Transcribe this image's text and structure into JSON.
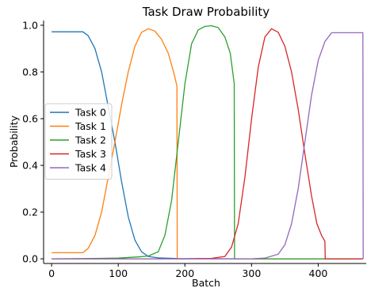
{
  "chart_data": {
    "type": "line",
    "title": "Task Draw Probability",
    "xlabel": "Batch",
    "ylabel": "Probability",
    "xlim": [
      -12,
      472
    ],
    "ylim": [
      -0.02,
      1.02
    ],
    "xticks": [
      0,
      100,
      200,
      300,
      400
    ],
    "yticks": [
      0.0,
      0.2,
      0.4,
      0.6,
      0.8,
      1.0
    ],
    "grid": false,
    "legend_position": "center-left",
    "series": [
      {
        "name": "Task 0",
        "color": "#1f77b4",
        "points": [
          [
            0,
            0.972
          ],
          [
            25,
            0.972
          ],
          [
            47,
            0.972
          ],
          [
            55,
            0.955
          ],
          [
            65,
            0.9
          ],
          [
            75,
            0.8
          ],
          [
            85,
            0.65
          ],
          [
            95,
            0.5
          ],
          [
            105,
            0.33
          ],
          [
            115,
            0.18
          ],
          [
            125,
            0.08
          ],
          [
            135,
            0.03
          ],
          [
            145,
            0.01
          ],
          [
            160,
            0.004
          ],
          [
            190,
            0.001
          ],
          [
            300,
            0.0
          ],
          [
            467,
            0.0
          ]
        ]
      },
      {
        "name": "Task 1",
        "color": "#ff7f0e",
        "points": [
          [
            0,
            0.026
          ],
          [
            25,
            0.026
          ],
          [
            47,
            0.026
          ],
          [
            55,
            0.045
          ],
          [
            65,
            0.1
          ],
          [
            75,
            0.2
          ],
          [
            85,
            0.35
          ],
          [
            95,
            0.5
          ],
          [
            105,
            0.66
          ],
          [
            115,
            0.8
          ],
          [
            125,
            0.91
          ],
          [
            135,
            0.97
          ],
          [
            145,
            0.985
          ],
          [
            155,
            0.975
          ],
          [
            165,
            0.94
          ],
          [
            175,
            0.88
          ],
          [
            183,
            0.8
          ],
          [
            188,
            0.74
          ],
          [
            188.5,
            0.0
          ],
          [
            300,
            0.0
          ],
          [
            467,
            0.0
          ]
        ]
      },
      {
        "name": "Task 2",
        "color": "#2ca02c",
        "points": [
          [
            0,
            0.0
          ],
          [
            50,
            0.001
          ],
          [
            100,
            0.003
          ],
          [
            130,
            0.008
          ],
          [
            145,
            0.012
          ],
          [
            160,
            0.03
          ],
          [
            170,
            0.1
          ],
          [
            180,
            0.25
          ],
          [
            190,
            0.5
          ],
          [
            200,
            0.75
          ],
          [
            210,
            0.92
          ],
          [
            220,
            0.98
          ],
          [
            230,
            0.995
          ],
          [
            240,
            0.998
          ],
          [
            250,
            0.99
          ],
          [
            260,
            0.95
          ],
          [
            268,
            0.88
          ],
          [
            274,
            0.75
          ],
          [
            274.5,
            0.0
          ],
          [
            467,
            0.0
          ]
        ]
      },
      {
        "name": "Task 3",
        "color": "#d62728",
        "points": [
          [
            0,
            0.0
          ],
          [
            200,
            0.0
          ],
          [
            240,
            0.002
          ],
          [
            260,
            0.01
          ],
          [
            270,
            0.05
          ],
          [
            280,
            0.15
          ],
          [
            290,
            0.35
          ],
          [
            300,
            0.6
          ],
          [
            310,
            0.82
          ],
          [
            320,
            0.95
          ],
          [
            330,
            0.985
          ],
          [
            340,
            0.97
          ],
          [
            350,
            0.91
          ],
          [
            360,
            0.8
          ],
          [
            370,
            0.64
          ],
          [
            380,
            0.45
          ],
          [
            390,
            0.27
          ],
          [
            398,
            0.15
          ],
          [
            405,
            0.1
          ],
          [
            410,
            0.075
          ],
          [
            410.5,
            0.0
          ],
          [
            467,
            0.0
          ]
        ]
      },
      {
        "name": "Task 4",
        "color": "#9467bd",
        "points": [
          [
            0,
            0.0
          ],
          [
            300,
            0.0
          ],
          [
            320,
            0.003
          ],
          [
            340,
            0.02
          ],
          [
            350,
            0.06
          ],
          [
            360,
            0.15
          ],
          [
            370,
            0.3
          ],
          [
            380,
            0.5
          ],
          [
            390,
            0.7
          ],
          [
            400,
            0.85
          ],
          [
            410,
            0.93
          ],
          [
            420,
            0.968
          ],
          [
            467,
            0.968
          ],
          [
            467.5,
            0.0
          ]
        ]
      }
    ]
  }
}
